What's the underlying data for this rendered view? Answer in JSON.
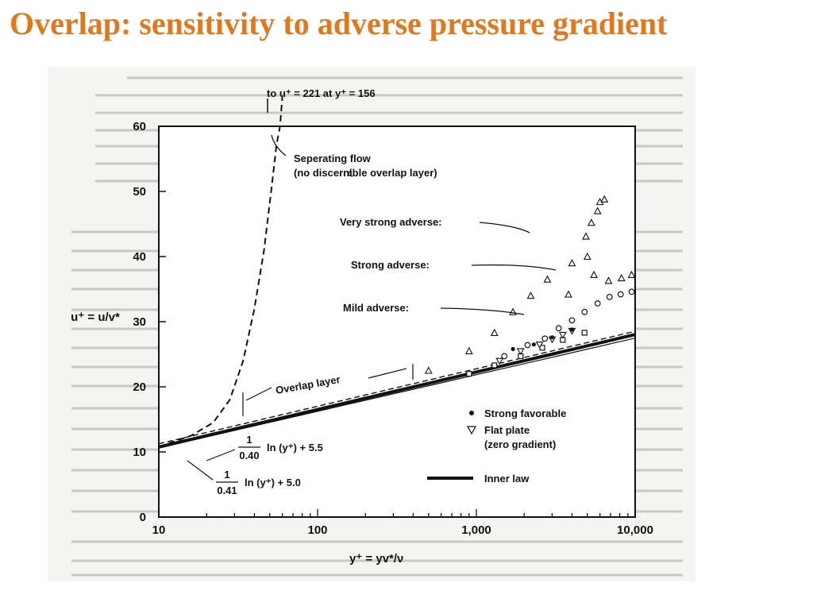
{
  "title": "Overlap: sensitivity to adverse pressure gradient",
  "colors": {
    "title": "#e0781e",
    "ink": "#111111",
    "paper": "#f4f4f2"
  },
  "chart_data": {
    "type": "scatter",
    "xscale": "log",
    "xlim": [
      10,
      10000
    ],
    "ylim": [
      0,
      60
    ],
    "xticks": [
      10,
      100,
      1000,
      10000
    ],
    "xtick_labels": [
      "10",
      "100",
      "1,000",
      "10,000"
    ],
    "yticks": [
      0,
      10,
      20,
      30,
      40,
      50,
      60
    ],
    "ytick_labels": [
      "0",
      "10",
      "20",
      "30",
      "40",
      "50",
      "60"
    ],
    "xlabel": "y⁺ = yv*/ν",
    "ylabel": "u⁺ = u/v*",
    "annotations": {
      "top": "to u⁺ = 221 at y⁺ = 156",
      "separating_1": "Seperating flow",
      "separating_2": "(no discernible overlap layer)",
      "very_strong": "Very strong adverse:",
      "strong": "Strong adverse:",
      "mild": "Mild adverse:",
      "overlap": "Overlap layer",
      "eq1_num": "1",
      "eq1_den": "0.40",
      "eq1_rest": "ln (y⁺) + 5.5",
      "eq2_num": "1",
      "eq2_den": "0.41",
      "eq2_rest": "ln (y⁺) + 5.0"
    },
    "legend": {
      "placement": "bottom-right",
      "items": [
        {
          "marker": "dot",
          "label": "Strong favorable"
        },
        {
          "marker": "triangle-down",
          "label": "Flat plate"
        },
        {
          "marker": "none",
          "label": "(zero gradient)"
        },
        {
          "marker": "thick-line",
          "label": "Inner law"
        }
      ]
    },
    "series": [
      {
        "marker": "square",
        "points": [
          [
            900,
            22
          ],
          [
            1300,
            23.3
          ],
          [
            1900,
            24.7
          ],
          [
            2600,
            26
          ],
          [
            3500,
            27.2
          ],
          [
            4800,
            28.3
          ]
        ]
      },
      {
        "marker": "circle-open",
        "points": [
          [
            1500,
            24.7
          ],
          [
            2100,
            26.4
          ],
          [
            2700,
            27.4
          ],
          [
            3300,
            29
          ],
          [
            4000,
            30.2
          ],
          [
            4800,
            31.5
          ],
          [
            5800,
            32.8
          ],
          [
            6900,
            33.8
          ],
          [
            8100,
            34.2
          ],
          [
            9500,
            34.6
          ]
        ]
      },
      {
        "marker": "triangle-down",
        "points": [
          [
            1400,
            24
          ],
          [
            1900,
            25.5
          ],
          [
            2500,
            26.5
          ],
          [
            3000,
            27.3
          ],
          [
            3500,
            28
          ],
          [
            4000,
            28.6
          ]
        ]
      },
      {
        "marker": "triangle-up",
        "points": [
          [
            500,
            22.5
          ],
          [
            900,
            25.5
          ],
          [
            1300,
            28.3
          ],
          [
            1700,
            31.5
          ],
          [
            2200,
            34
          ],
          [
            2800,
            36.5
          ],
          [
            4000,
            39
          ],
          [
            5000,
            40
          ],
          [
            3800,
            34.2
          ],
          [
            5500,
            37.2
          ],
          [
            6800,
            36.3
          ],
          [
            8200,
            36.7
          ],
          [
            9500,
            37.2
          ],
          [
            4900,
            43.1
          ],
          [
            5300,
            45.2
          ],
          [
            5800,
            47
          ],
          [
            6000,
            48.4
          ],
          [
            6400,
            48.8
          ]
        ]
      },
      {
        "marker": "dot",
        "points": [
          [
            1700,
            25.8
          ],
          [
            2300,
            26.5
          ],
          [
            3000,
            27.6
          ],
          [
            4000,
            28.8
          ]
        ]
      }
    ],
    "curves": [
      {
        "name": "Inner law",
        "style": "thick",
        "equation": "2.5 ln(y+) + 5.0"
      },
      {
        "name": "overlap 0.40",
        "style": "dashed",
        "equation": "2.5 ln(y+) + 5.5"
      },
      {
        "name": "overlap 0.41",
        "style": "solid",
        "equation": "2.44 ln(y+) + 5.0"
      },
      {
        "name": "Separating flow",
        "style": "dashed-steep"
      }
    ]
  }
}
